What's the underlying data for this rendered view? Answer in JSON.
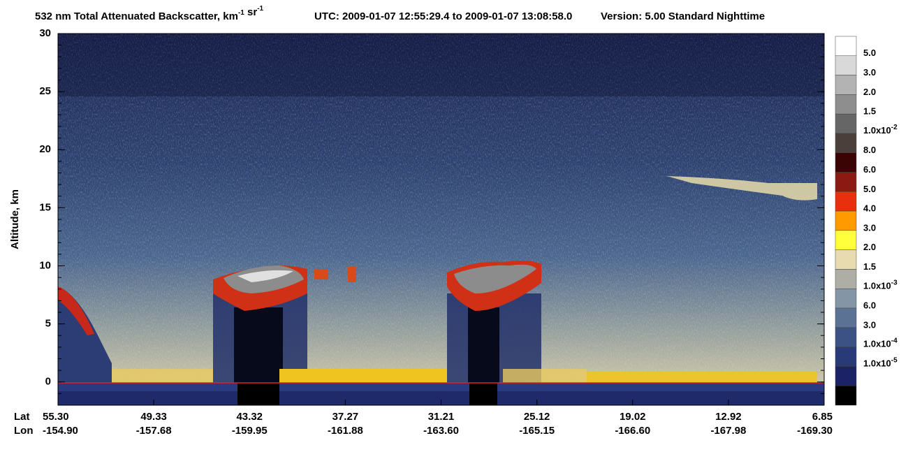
{
  "chart_data": {
    "type": "curtain",
    "title": [
      "532 nm Total Attenuated Backscatter, km",
      {
        "sup": "-1"
      },
      " sr",
      {
        "sup": "-1"
      }
    ],
    "utc": "UTC:  2009-01-07 12:55:29.4  to  2009-01-07 13:08:58.0",
    "version": "Version: 5.00  Standard  Nighttime",
    "y_label": "Altitude, km",
    "ylim": [
      -2,
      30
    ],
    "yticks": [
      0,
      5,
      10,
      15,
      20,
      25,
      30
    ],
    "x_row_labels": [
      "Lat",
      "Lon"
    ],
    "lat": [
      "55.30",
      "49.33",
      "43.32",
      "37.27",
      "31.21",
      "25.12",
      "19.02",
      "12.92",
      "6.85"
    ],
    "lon": [
      "-154.90",
      "-157.68",
      "-159.95",
      "-161.88",
      "-163.60",
      "-165.15",
      "-166.60",
      "-167.98",
      "-169.30"
    ],
    "colorbar": {
      "colors": [
        "#ffffff",
        "#d9d9d9",
        "#b3b3b3",
        "#8e8e8e",
        "#666666",
        "#4a3f3a",
        "#3a0404",
        "#8c1a12",
        "#e8300e",
        "#ff9a00",
        "#ffff3c",
        "#e8dbb0",
        "#aeaea4",
        "#8496a6",
        "#5c7294",
        "#3c5284",
        "#283a78",
        "#1c2266",
        "#000000"
      ],
      "labels": [
        "5.0",
        "3.0",
        "2.0",
        "1.5",
        {
          "text": "1.0x10",
          "sup": "-2"
        },
        "8.0",
        "6.0",
        "5.0",
        "4.0",
        "3.0",
        "2.0",
        "1.5",
        {
          "text": "1.0x10",
          "sup": "-3"
        },
        "6.0",
        "3.0",
        {
          "text": "1.0x10",
          "sup": "-4"
        },
        {
          "text": "1.0x10",
          "sup": "-5"
        }
      ]
    }
  }
}
